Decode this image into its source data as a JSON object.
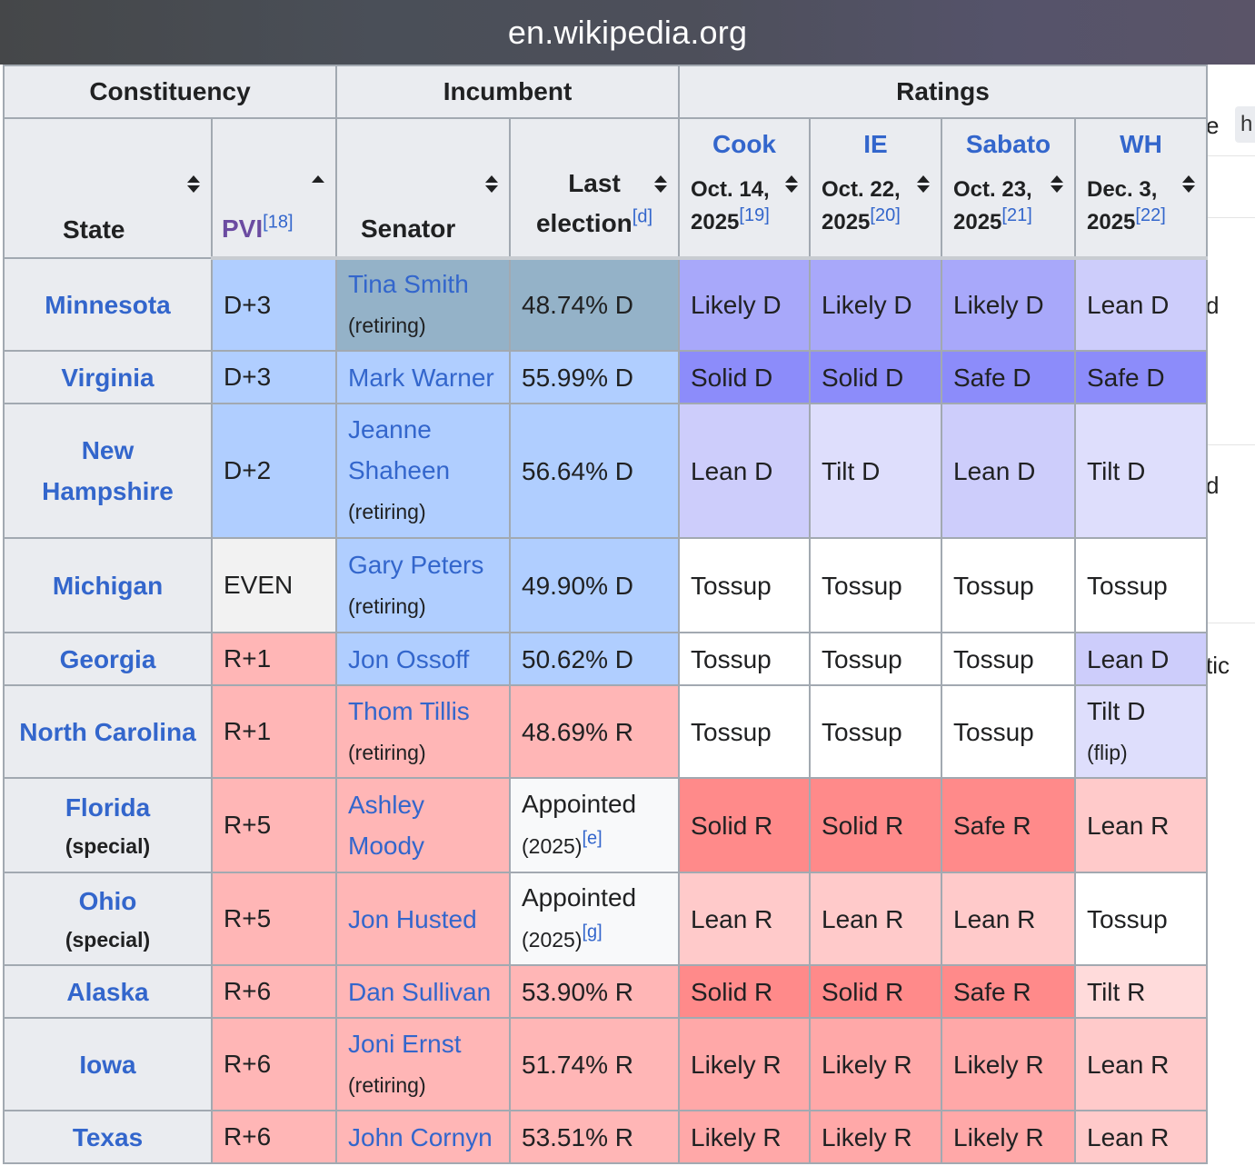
{
  "browser": {
    "url": "en.wikipedia.org"
  },
  "background_fragments": [
    "e",
    "h",
    "d",
    "d",
    "tic"
  ],
  "table": {
    "group_headers": {
      "constituency": "Constituency",
      "incumbent": "Incumbent",
      "ratings": "Ratings"
    },
    "columns": {
      "state": "State",
      "pvi": "PVI",
      "pvi_ref": "[18]",
      "senator": "Senator",
      "last_line1": "Last",
      "last_line2": "election",
      "last_ref": "[d]"
    },
    "sources": [
      {
        "name": "Cook",
        "date1": "Oct. 14,",
        "date2": "2025",
        "ref": "[19]"
      },
      {
        "name": "IE",
        "date1": "Oct. 22,",
        "date2": "2025",
        "ref": "[20]"
      },
      {
        "name": "Sabato",
        "date1": "Oct. 23,",
        "date2": "2025",
        "ref": "[21]"
      },
      {
        "name": "WH",
        "date1": "Dec. 3,",
        "date2": "2025",
        "ref": "[22]"
      }
    ],
    "rows": [
      {
        "state": "Minnesota",
        "special": "",
        "pvi": "D+3",
        "pvi_party": "D",
        "senator": "Tina Smith",
        "retiring": "(retiring)",
        "senator_party": "ret",
        "last": "48.74% D",
        "last_note": "",
        "last_ref": "",
        "last_party": "ret",
        "ratings": [
          "Likely D",
          "Likely D",
          "Likely D",
          "Lean D"
        ],
        "notes": [
          "",
          "",
          "",
          ""
        ]
      },
      {
        "state": "Virginia",
        "special": "",
        "pvi": "D+3",
        "pvi_party": "D",
        "senator": "Mark Warner",
        "retiring": "",
        "senator_party": "D",
        "last": "55.99% D",
        "last_note": "",
        "last_ref": "",
        "last_party": "D",
        "ratings": [
          "Solid D",
          "Solid D",
          "Safe D",
          "Safe D"
        ],
        "notes": [
          "",
          "",
          "",
          ""
        ]
      },
      {
        "state": "New Hampshire",
        "special": "",
        "pvi": "D+2",
        "pvi_party": "D",
        "senator": "Jeanne Shaheen",
        "retiring": "(retiring)",
        "senator_party": "D",
        "last": "56.64% D",
        "last_note": "",
        "last_ref": "",
        "last_party": "D",
        "ratings": [
          "Lean D",
          "Tilt D",
          "Lean D",
          "Tilt D"
        ],
        "notes": [
          "",
          "",
          "",
          ""
        ]
      },
      {
        "state": "Michigan",
        "special": "",
        "pvi": "EVEN",
        "pvi_party": "E",
        "senator": "Gary Peters",
        "retiring": "(retiring)",
        "senator_party": "D",
        "last": "49.90% D",
        "last_note": "",
        "last_ref": "",
        "last_party": "D",
        "ratings": [
          "Tossup",
          "Tossup",
          "Tossup",
          "Tossup"
        ],
        "notes": [
          "",
          "",
          "",
          ""
        ]
      },
      {
        "state": "Georgia",
        "special": "",
        "pvi": "R+1",
        "pvi_party": "R",
        "senator": "Jon Ossoff",
        "retiring": "",
        "senator_party": "D",
        "last": "50.62% D",
        "last_note": "",
        "last_ref": "",
        "last_party": "D",
        "ratings": [
          "Tossup",
          "Tossup",
          "Tossup",
          "Lean D"
        ],
        "notes": [
          "",
          "",
          "",
          ""
        ]
      },
      {
        "state": "North Carolina",
        "special": "",
        "pvi": "R+1",
        "pvi_party": "R",
        "senator": "Thom Tillis",
        "retiring": "(retiring)",
        "senator_party": "R",
        "last": "48.69% R",
        "last_note": "",
        "last_ref": "",
        "last_party": "R",
        "ratings": [
          "Tossup",
          "Tossup",
          "Tossup",
          "Tilt D"
        ],
        "notes": [
          "",
          "",
          "",
          "(flip)"
        ]
      },
      {
        "state": "Florida",
        "special": "(special)",
        "pvi": "R+5",
        "pvi_party": "R",
        "senator": "Ashley Moody",
        "retiring": "",
        "senator_party": "R",
        "last": "Appointed",
        "last_note": "(2025)",
        "last_ref": "[e]",
        "last_party": "app",
        "ratings": [
          "Solid R",
          "Solid R",
          "Safe R",
          "Lean R"
        ],
        "notes": [
          "",
          "",
          "",
          ""
        ]
      },
      {
        "state": "Ohio",
        "special": "(special)",
        "pvi": "R+5",
        "pvi_party": "R",
        "senator": "Jon Husted",
        "retiring": "",
        "senator_party": "R",
        "last": "Appointed",
        "last_note": "(2025)",
        "last_ref": "[g]",
        "last_party": "app",
        "ratings": [
          "Lean R",
          "Lean R",
          "Lean R",
          "Tossup"
        ],
        "notes": [
          "",
          "",
          "",
          ""
        ]
      },
      {
        "state": "Alaska",
        "special": "",
        "pvi": "R+6",
        "pvi_party": "R",
        "senator": "Dan Sullivan",
        "retiring": "",
        "senator_party": "R",
        "last": "53.90% R",
        "last_note": "",
        "last_ref": "",
        "last_party": "R",
        "ratings": [
          "Solid R",
          "Solid R",
          "Safe R",
          "Tilt R"
        ],
        "notes": [
          "",
          "",
          "",
          ""
        ]
      },
      {
        "state": "Iowa",
        "special": "",
        "pvi": "R+6",
        "pvi_party": "R",
        "senator": "Joni Ernst",
        "retiring": "(retiring)",
        "senator_party": "R",
        "last": "51.74% R",
        "last_note": "",
        "last_ref": "",
        "last_party": "R",
        "ratings": [
          "Likely R",
          "Likely R",
          "Likely R",
          "Lean R"
        ],
        "notes": [
          "",
          "",
          "",
          ""
        ]
      },
      {
        "state": "Texas",
        "special": "",
        "pvi": "R+6",
        "pvi_party": "R",
        "senator": "John Cornyn",
        "retiring": "",
        "senator_party": "R",
        "last": "53.51% R",
        "last_note": "",
        "last_ref": "",
        "last_party": "R",
        "ratings": [
          "Likely R",
          "Likely R",
          "Likely R",
          "Lean R"
        ],
        "notes": [
          "",
          "",
          "",
          ""
        ]
      }
    ],
    "rating_colors": {
      "Solid D": "#8c8cfa",
      "Safe D": "#8c8cfa",
      "Likely D": "#a8a8fa",
      "Lean D": "#cdcdfb",
      "Tilt D": "#dedefc",
      "Tossup": "#ffffff",
      "Tilt R": "#ffdbdb",
      "Lean R": "#ffcaca",
      "Likely R": "#ffa8a8",
      "Solid R": "#ff8a8a",
      "Safe R": "#ff8a8a"
    }
  }
}
